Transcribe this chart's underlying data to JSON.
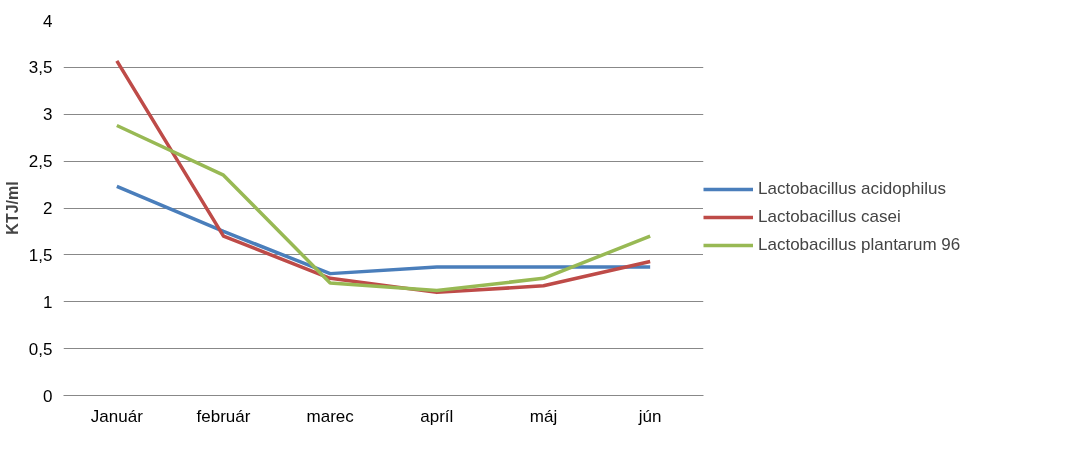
{
  "chart_data": {
    "type": "line",
    "ylabel": "KTJ/ml",
    "categories": [
      "Január",
      "február",
      "marec",
      "apríl",
      "máj",
      "jún"
    ],
    "series": [
      {
        "name": "Lactobacillus acidophilus",
        "color": "#4a7ebb",
        "values": [
          2.23,
          1.75,
          1.3,
          1.37,
          1.37,
          1.37
        ]
      },
      {
        "name": "Lactobacillus casei",
        "color": "#be4b48",
        "values": [
          3.57,
          1.7,
          1.25,
          1.1,
          1.17,
          1.43
        ]
      },
      {
        "name": "Lactobacillus plantarum 96",
        "color": "#98b954",
        "values": [
          2.88,
          2.35,
          1.2,
          1.12,
          1.25,
          1.7
        ]
      }
    ],
    "ylim": [
      0,
      4
    ],
    "yticks": [
      {
        "value": 0,
        "label": "0"
      },
      {
        "value": 0.5,
        "label": "0,5"
      },
      {
        "value": 1,
        "label": "1"
      },
      {
        "value": 1.5,
        "label": "1,5"
      },
      {
        "value": 2,
        "label": "2"
      },
      {
        "value": 2.5,
        "label": "2,5"
      },
      {
        "value": 3,
        "label": "3"
      },
      {
        "value": 3.5,
        "label": "3,5"
      },
      {
        "value": 4,
        "label": "4"
      }
    ],
    "grid": "y",
    "legend": "right",
    "marker": "none",
    "line_style": "solid"
  }
}
